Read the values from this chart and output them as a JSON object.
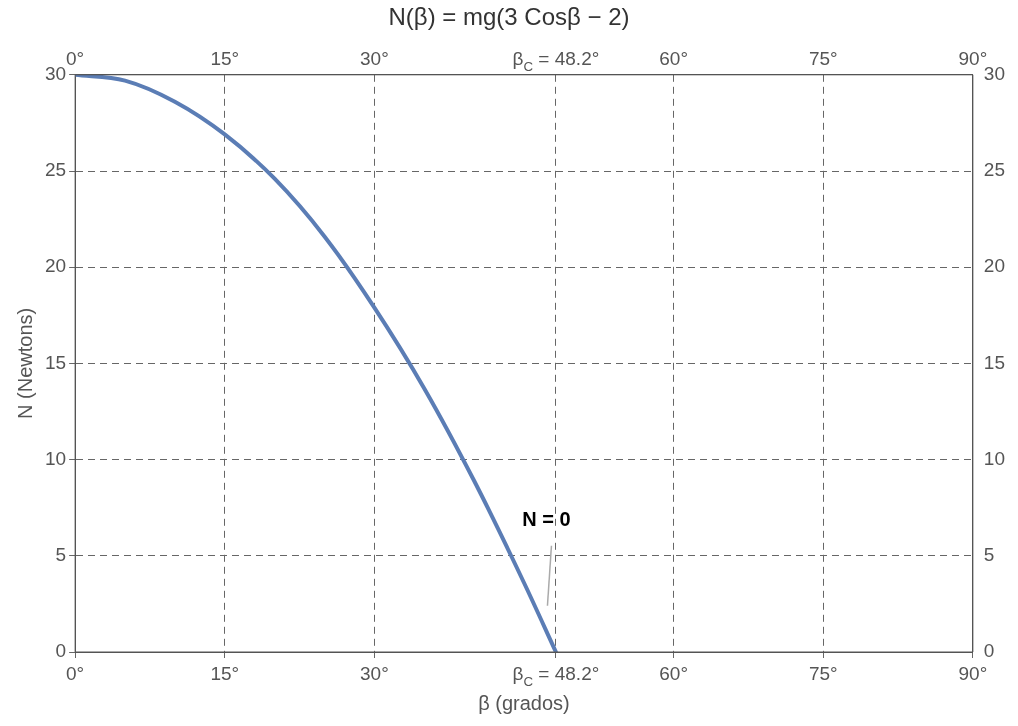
{
  "chart_data": {
    "type": "line",
    "title": "N(β) = mg(3 Cosβ − 2)",
    "xlabel": "β (grados)",
    "ylabel": "N (Newtons)",
    "series": [
      {
        "color": "#5b7db5",
        "x": [
          0,
          5,
          10,
          15,
          20,
          25,
          30,
          35,
          40,
          45,
          48.2
        ],
        "values": [
          30,
          29.7,
          28.6,
          26.9,
          24.6,
          21.6,
          17.9,
          13.7,
          8.9,
          3.6,
          0
        ]
      }
    ],
    "xlim": [
      0,
      90
    ],
    "xticks": [
      {
        "value": 0,
        "label": "0°"
      },
      {
        "value": 15,
        "label": "15°"
      },
      {
        "value": 30,
        "label": "30°"
      },
      {
        "value": 48.2,
        "label": "β$_{C}$ = 48.2°"
      },
      {
        "value": 60,
        "label": "60°"
      },
      {
        "value": 75,
        "label": "75°"
      },
      {
        "value": 90,
        "label": "90°"
      }
    ],
    "x2lim": [
      0,
      90
    ],
    "x2ticks": [
      {
        "value": 0,
        "label": "0°"
      },
      {
        "value": 15,
        "label": "15°"
      },
      {
        "value": 30,
        "label": "30°"
      },
      {
        "value": 48.2,
        "label": "β$_{C}$ = 48.2°"
      },
      {
        "value": 60,
        "label": "60°"
      },
      {
        "value": 75,
        "label": "75°"
      },
      {
        "value": 90,
        "label": "90°"
      }
    ],
    "ylim": [
      0,
      30
    ],
    "yticks": [
      0,
      5,
      10,
      15,
      20,
      25,
      30
    ],
    "y2lim": [
      0,
      30
    ],
    "y2ticks": [
      0,
      5,
      10,
      15,
      20,
      25,
      30
    ],
    "annotations": [
      "N = 0"
    ],
    "grid": true,
    "legend": false,
    "marker": "none",
    "line_style": "solid"
  }
}
